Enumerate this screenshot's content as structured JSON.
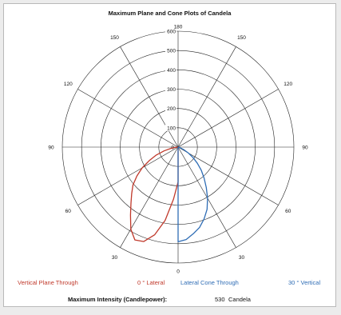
{
  "chart_data": {
    "type": "polar",
    "title": "Maximum Plane and Cone Plots of Candela",
    "radial_ticks": [
      100,
      200,
      300,
      400,
      500,
      600
    ],
    "radial_max": 600,
    "angle_labels": {
      "top": "180",
      "bottom": "0",
      "left_upper_outer": "150",
      "left_upper_mid": "120",
      "left": "90",
      "left_lower_mid": "60",
      "left_lower_outer": "30",
      "right_upper_outer": "150",
      "right_upper_mid": "120",
      "right": "90",
      "right_lower_mid": "60",
      "right_lower_outer": "30"
    },
    "center_label": "0",
    "series": [
      {
        "name": "Vertical Plane Through 0 ° Lateral",
        "color": "#c0392b",
        "side": "left",
        "angles": [
          0,
          5,
          10,
          15,
          20,
          25,
          30,
          35,
          40,
          45,
          50,
          55,
          60,
          65,
          70,
          75,
          80,
          85,
          90
        ],
        "values": [
          180,
          270,
          385,
          470,
          520,
          530,
          490,
          430,
          380,
          340,
          305,
          260,
          215,
          165,
          120,
          75,
          38,
          12,
          0
        ]
      },
      {
        "name": "Lateral Cone Through 30 ° Vertical",
        "color": "#2f6db5",
        "side": "right",
        "angles": [
          0,
          5,
          10,
          15,
          20,
          25,
          30,
          35,
          40,
          45,
          50,
          55,
          60,
          65,
          70,
          75,
          80,
          85,
          90
        ],
        "values": [
          490,
          480,
          455,
          430,
          395,
          355,
          305,
          255,
          210,
          170,
          130,
          95,
          62,
          35,
          16,
          6,
          2,
          0,
          0
        ]
      }
    ]
  },
  "legend": {
    "series1_label": "Vertical Plane Through",
    "series1_value": "0 ° Lateral",
    "series2_label": "Lateral Cone Through",
    "series2_value": "30 ° Vertical"
  },
  "footer": {
    "label": "Maximum Intensity (Candlepower):",
    "value": "530",
    "unit": "Candela"
  },
  "colors": {
    "red": "#c0392b",
    "blue": "#2f6db5",
    "grid": "#222222"
  }
}
